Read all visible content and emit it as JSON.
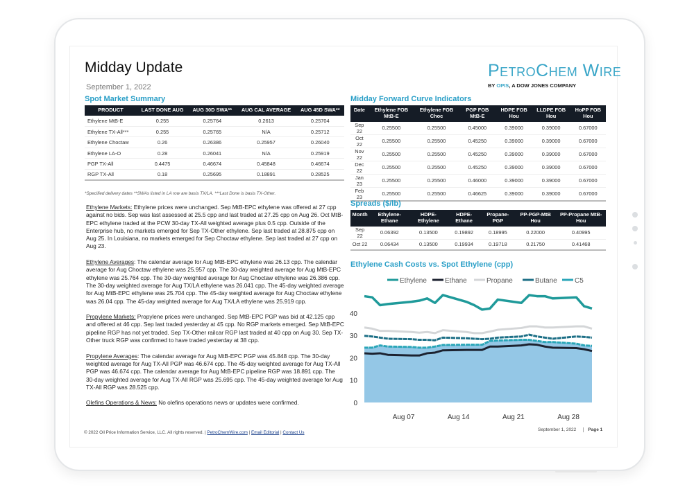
{
  "header": {
    "title": "Midday Update",
    "date": "September 1, 2022",
    "logo": "PetroChem Wire",
    "logo_sub_pre": "BY ",
    "logo_sub_brand": "OPIS",
    "logo_sub_post": ", A DOW JONES COMPANY"
  },
  "spot": {
    "title": "Spot Market Summary",
    "headers": [
      "PRODUCT",
      "LAST DONE AUG",
      "AUG 30D SWA**",
      "AUG CAL AVERAGE",
      "AUG 45D SWA**"
    ],
    "rows": [
      [
        "Ethylene MtB-E",
        "0.255",
        "0.25764",
        "0.2613",
        "0.25704"
      ],
      [
        "Ethylene TX-All***",
        "0.255",
        "0.25765",
        "N/A",
        "0.25712"
      ],
      [
        "Ethylene Choctaw",
        "0.26",
        "0.26386",
        "0.25957",
        "0.26040"
      ],
      [
        "Ethylene LA-O",
        "0.28",
        "0.26041",
        "N/A",
        "0.25919"
      ],
      [
        "PGP TX-All",
        "0.4475",
        "0.46674",
        "0.45848",
        "0.46674"
      ],
      [
        "RGP TX-All",
        "0.18",
        "0.25695",
        "0.18891",
        "0.28525"
      ]
    ],
    "note": "*Specified delivery dates **SWAs listed in LA row are basis TX/LA. ***Last Done is basis TX-Other."
  },
  "forward": {
    "title": "Midday Forward Curve Indicators",
    "headers": [
      "Date",
      "Ethylene FOB MtB-E",
      "Ethylene FOB Choc",
      "PGP FOB MtB-E",
      "HDPE FOB Hou",
      "LLDPE FOB Hou",
      "HoPP FOB Hou"
    ],
    "rows": [
      [
        "Sep 22",
        "0.25500",
        "0.25500",
        "0.45000",
        "0.39000",
        "0.39000",
        "0.67000"
      ],
      [
        "Oct 22",
        "0.25500",
        "0.25500",
        "0.45250",
        "0.39000",
        "0.39000",
        "0.67000"
      ],
      [
        "Nov 22",
        "0.25500",
        "0.25500",
        "0.45250",
        "0.39000",
        "0.39000",
        "0.67000"
      ],
      [
        "Dec 22",
        "0.25500",
        "0.25500",
        "0.45250",
        "0.39000",
        "0.39000",
        "0.67000"
      ],
      [
        "Jan 23",
        "0.25500",
        "0.25500",
        "0.46000",
        "0.39000",
        "0.39000",
        "0.67000"
      ],
      [
        "Feb 23",
        "0.25500",
        "0.25500",
        "0.46625",
        "0.39000",
        "0.39000",
        "0.67000"
      ]
    ]
  },
  "spreads": {
    "title": "Spreads ($/lb)",
    "headers": [
      "Month",
      "Ethylene-Ethane",
      "HDPE-Ethylene",
      "HDPE-Ethane",
      "Propane-PGP",
      "PP-PGP-MtB Hou",
      "PP-Propane MtB-Hou"
    ],
    "rows": [
      [
        "Sep 22",
        "0.06392",
        "0.13500",
        "0.19892",
        "0.18995",
        "0.22000",
        "0.40995"
      ],
      [
        "Oct 22",
        "0.06434",
        "0.13500",
        "0.19934",
        "0.19718",
        "0.21750",
        "0.41468"
      ]
    ]
  },
  "commentary": [
    {
      "label": "Ethylene Markets:",
      "text": " Ethylene prices were unchanged. Sep MtB-EPC ethylene was offered at 27 cpp against no bids. Sep was last assessed at 25.5 cpp and last traded at 27.25 cpp on Aug 26. Oct MtB-EPC ethylene traded at the PCW 30-day TX-All weighted average plus 0.5 cpp. Outside of the Enterprise hub, no markets emerged for Sep TX-Other ethylene. Sep last traded at 28.875 cpp on Aug 25. In Louisiana, no markets emerged for Sep Choctaw ethylene. Sep last traded at 27 cpp on Aug 23."
    },
    {
      "label": "Ethylene Averages",
      "text": ": The calendar average for Aug MtB-EPC ethylene was 26.13 cpp. The calendar average for Aug Choctaw ethylene was 25.957 cpp. The 30-day weighted average for Aug MtB-EPC ethylene was 25.764 cpp. The 30-day weighted average for Aug Choctaw ethylene was 26.386 cpp. The 30-day weighted average for Aug TX/LA ethylene was 26.041 cpp. The 45-day weighted average for Aug MtB-EPC ethylene was 25.704 cpp. The 45-day weighted average for Aug Choctaw ethylene was 26.04 cpp. The 45-day weighted average for Aug TX/LA ethylene was 25.919 cpp."
    },
    {
      "label": "Propylene Markets:",
      "text": " Propylene prices were unchanged. Sep MtB-EPC PGP was bid at 42.125 cpp and offered at 46 cpp. Sep last traded yesterday at 45 cpp. No RGP markets emerged. Sep MtB-EPC pipeline RGP has not yet traded. Sep TX-Other railcar RGP last traded at 40 cpp on Aug 30. Sep TX-Other truck RGP was confirmed to have traded yesterday at 38 cpp."
    },
    {
      "label": "Propylene Averages",
      "text": ": The calendar average for Aug MtB-EPC PGP was 45.848 cpp. The 30-day weighted average for Aug TX-All PGP was 46.674 cpp. The 45-day weighted average for Aug TX-All PGP was 46.674 cpp. The calendar average for Aug MtB-EPC pipeline RGP was 18.891 cpp. The 30-day weighted average for Aug TX-All RGP was 25.695 cpp. The 45-day weighted average for Aug TX-All RGP was 28.525 cpp."
    },
    {
      "label": "Olefins Operations & News:",
      "text": " No olefins operations news or updates were confirmed."
    }
  ],
  "footer": {
    "copyright": "© 2022 Oil Price Information Service, LLC. All rights reserved. | ",
    "link1": "PetroChemWire.com",
    "sep": " | ",
    "link2": "Email Editorial",
    "link3": "Contact Us",
    "date": "September 1, 2022",
    "page": "Page 1"
  },
  "chart_data": {
    "type": "line",
    "title": "Ethylene Cash Costs vs. Spot Ethylene (cpp)",
    "ylim": [
      0,
      50
    ],
    "yticks": [
      0,
      10,
      20,
      30,
      40
    ],
    "xticks": [
      "Aug 07",
      "Aug 14",
      "Aug 21",
      "Aug 28"
    ],
    "grid": false,
    "legend": "top",
    "x": [
      2,
      3,
      4,
      5,
      8,
      9,
      10,
      11,
      12,
      15,
      16,
      17,
      18,
      19,
      22,
      23,
      24,
      25,
      26,
      29,
      30,
      31
    ],
    "series": [
      {
        "name": "Ethylene",
        "color": "#1f9a9a",
        "values": [
          47.5,
          47,
          43.5,
          44,
          45,
          45.5,
          46.5,
          44.5,
          48,
          45,
          43.5,
          41.5,
          42,
          46,
          44.5,
          48,
          47.5,
          47.5,
          46.5,
          47,
          43,
          42
        ]
      },
      {
        "name": "Ethane",
        "color": "#1c2230",
        "values": [
          22,
          21.8,
          22,
          21.3,
          21,
          21,
          22,
          22.3,
          23.3,
          23.5,
          23.5,
          23.5,
          25,
          25,
          25.5,
          26,
          25.8,
          25,
          24.5,
          24.3,
          23.8,
          23
        ]
      },
      {
        "name": "Propane",
        "color": "#d4d6d8",
        "values": [
          33.5,
          33,
          32,
          32,
          31.5,
          31.2,
          31.5,
          31,
          32.3,
          31.5,
          31,
          31,
          31.7,
          32.5,
          33.3,
          34,
          34,
          33.5,
          33.5,
          34,
          34,
          33
        ]
      },
      {
        "name": "Butane",
        "color": "#1d6f86",
        "values": [
          29.8,
          29.5,
          29,
          28.5,
          28.3,
          28,
          28,
          27.8,
          29,
          28.7,
          28.5,
          28.3,
          28.5,
          29,
          29.5,
          30.3,
          29.5,
          29,
          28.5,
          29.5,
          29.3,
          29
        ]
      },
      {
        "name": "C5",
        "color": "#2aa6b8",
        "area": "#94c7e6",
        "values": [
          24.5,
          24.5,
          25.5,
          25,
          24.8,
          24.5,
          24.5,
          25,
          25.7,
          25.8,
          25.8,
          25.8,
          27.5,
          27.7,
          28,
          28,
          27.5,
          27,
          27,
          26.3,
          25.5,
          25.3
        ]
      }
    ]
  }
}
